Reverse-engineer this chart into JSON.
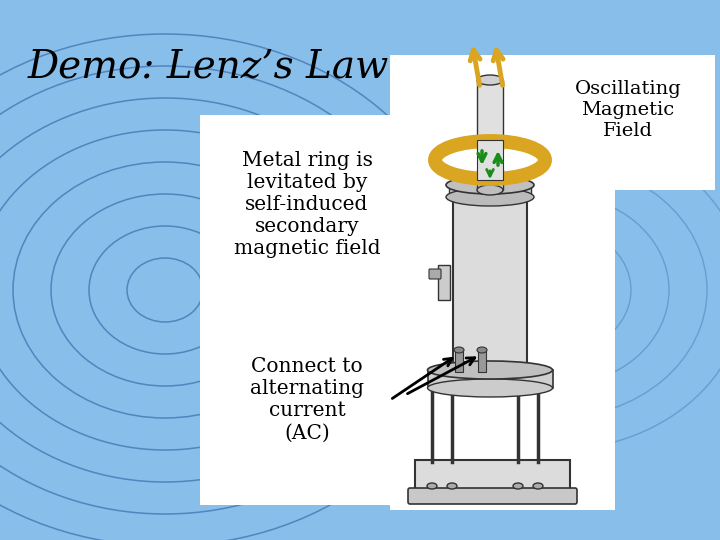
{
  "background_color": "#87BEEA",
  "title": "Demo: Lenz’s Law",
  "title_fontsize": 28,
  "title_color": "#000000",
  "osc_label": "Oscillating\nMagnetic\nField",
  "metal_label": "Metal ring is\nlevitated by\nself-induced\nsecondary\nmagnetic field",
  "connect_label": "Connect to\nalternating\ncurrent\n(AC)",
  "ring_color": "#5B8FC4",
  "ring_color2": "#4A7AB5",
  "gold_color": "#DAA520",
  "green_color": "#1A8C1A",
  "apparatus_color": "#E8E8E8",
  "apparatus_edge": "#333333"
}
